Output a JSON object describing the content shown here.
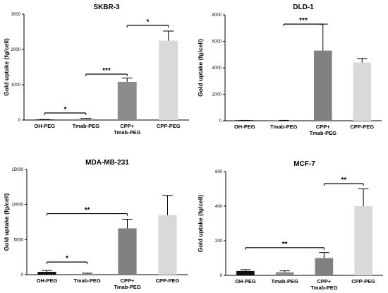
{
  "figure": {
    "background": "#ffffff"
  },
  "chart_data": [
    {
      "type": "bar",
      "title": "SKBR-3",
      "ylabel": "Gold uptake (fg/cell)",
      "xlabel": "",
      "ylim": [
        0,
        3000
      ],
      "yticks": [
        0,
        1000,
        2000,
        3000
      ],
      "categories": [
        "OH-PEG",
        "Tmab-PEG",
        "CPP+\nTmab-PEG",
        "CPP-PEG"
      ],
      "values": [
        10,
        30,
        1080,
        2250
      ],
      "errors": [
        5,
        15,
        110,
        270
      ],
      "colors": [
        "#111111",
        "#8c8c8c",
        "#8c8c8c",
        "#d9d9d9"
      ],
      "grid": false,
      "legend": "none",
      "significance": [
        {
          "from": 0,
          "to": 1,
          "y": 200,
          "label": "*"
        },
        {
          "from": 1,
          "to": 2,
          "y": 1300,
          "label": "***"
        },
        {
          "from": 2,
          "to": 3,
          "y": 2680,
          "label": "*"
        }
      ]
    },
    {
      "type": "bar",
      "title": "DLD-1",
      "ylabel": "Gold uptake (fg/cell)",
      "xlabel": "",
      "ylim": [
        0,
        8000
      ],
      "yticks": [
        0,
        2000,
        4000,
        6000,
        8000
      ],
      "categories": [
        "OH-PEG",
        "Tmab-PEG",
        "CPP+\nTmab-PEG",
        "CPP-PEG"
      ],
      "values": [
        20,
        20,
        5300,
        4400
      ],
      "errors": [
        10,
        10,
        2000,
        300
      ],
      "colors": [
        "#111111",
        "#8c8c8c",
        "#808080",
        "#d9d9d9"
      ],
      "grid": false,
      "legend": "none",
      "significance": [
        {
          "from": 1,
          "to": 2,
          "y": 7300,
          "label": "***"
        }
      ]
    },
    {
      "type": "bar",
      "title": "MDA-MB-231",
      "ylabel": "Gold uptake (fg/cell)",
      "xlabel": "",
      "ylim": [
        0,
        15000
      ],
      "yticks": [
        0,
        5000,
        10000,
        15000
      ],
      "categories": [
        "OH-PEG",
        "Tmab-PEG",
        "CPP+\nTmab-PEG",
        "CPP-PEG"
      ],
      "values": [
        400,
        100,
        6600,
        8500
      ],
      "errors": [
        200,
        100,
        1300,
        2800
      ],
      "colors": [
        "#111111",
        "#8c8c8c",
        "#808080",
        "#d9d9d9"
      ],
      "grid": false,
      "legend": "none",
      "significance": [
        {
          "from": 0,
          "to": 1,
          "y": 1800,
          "label": "*"
        },
        {
          "from": 0,
          "to": 2,
          "y": 8700,
          "label": "**"
        }
      ]
    },
    {
      "type": "bar",
      "title": "MCF-7",
      "ylabel": "Gold uptake (fg/cell)",
      "xlabel": "",
      "ylim": [
        0,
        600
      ],
      "yticks": [
        0,
        200,
        400,
        600
      ],
      "categories": [
        "OH-PEG",
        "Tmab-PEG",
        "CPP+\nTmab-PEG",
        "CPP-PEG"
      ],
      "values": [
        25,
        18,
        100,
        400
      ],
      "errors": [
        8,
        8,
        32,
        100
      ],
      "colors": [
        "#111111",
        "#8c8c8c",
        "#808080",
        "#d9d9d9"
      ],
      "grid": false,
      "legend": "none",
      "significance": [
        {
          "from": 0,
          "to": 2,
          "y": 160,
          "label": "**"
        },
        {
          "from": 2,
          "to": 3,
          "y": 530,
          "label": "**"
        }
      ]
    }
  ]
}
